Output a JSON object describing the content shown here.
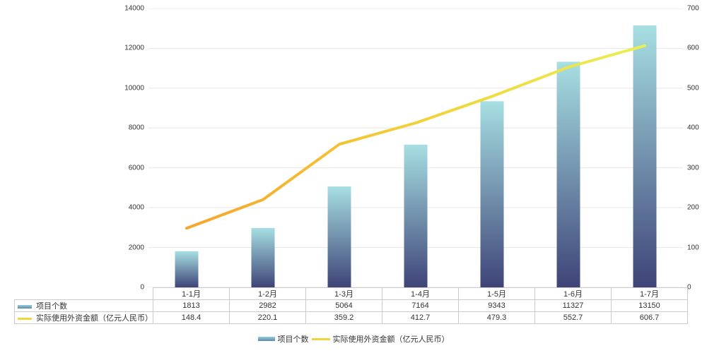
{
  "chart_data": {
    "type": "combo",
    "categories": [
      "1-1月",
      "1-2月",
      "1-3月",
      "1-4月",
      "1-5月",
      "1-6月",
      "1-7月"
    ],
    "series": [
      {
        "name": "项目个数",
        "type": "bar",
        "axis": "left",
        "values": [
          1813,
          2982,
          5064,
          7164,
          9343,
          11327,
          13150
        ]
      },
      {
        "name": "实际使用外资金额（亿元人民币）",
        "type": "line",
        "axis": "right",
        "values": [
          148.4,
          220.1,
          359.2,
          412.7,
          479.3,
          552.7,
          606.7
        ]
      }
    ],
    "title": "",
    "xlabel": "",
    "ylabel_left": "",
    "ylabel_right": "",
    "left_axis": {
      "min": 0,
      "max": 14000,
      "step": 2000
    },
    "right_axis": {
      "min": 0,
      "max": 700,
      "step": 100
    },
    "grid": true,
    "legend_position": "bottom",
    "data_table_shown": true,
    "colors": {
      "bar_top": "#a7dfe2",
      "bar_bottom": "#3e4478",
      "line_start": "#f6a42d",
      "line_mid": "#f2d138",
      "line_end": "#e9ef55",
      "swatch_bar_top": "#8ecfdb",
      "swatch_bar_bottom": "#6286ad",
      "swatch_line": "#f0d73c",
      "grid_line": "#e6e6e6",
      "table_border": "#cccccc",
      "text": "#333333"
    }
  }
}
